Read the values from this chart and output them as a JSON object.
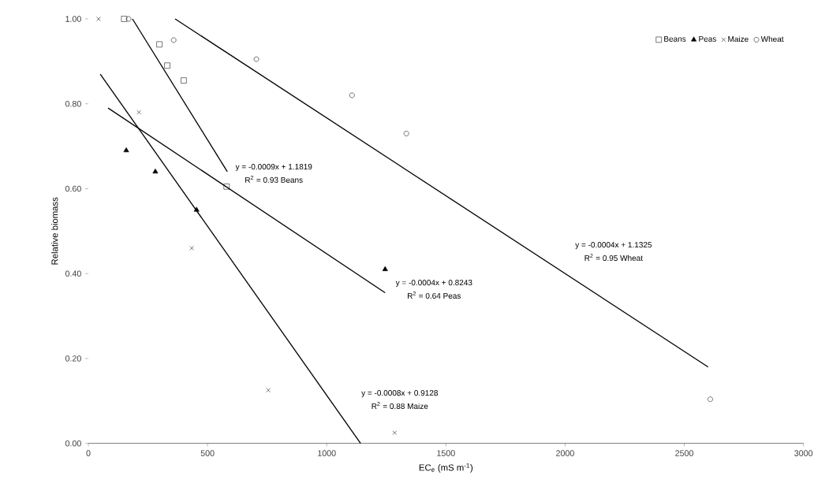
{
  "chart_data": {
    "type": "scatter",
    "xlabel": "EC$_{e}$ (mS m$^{-1}$)",
    "ylabel": "Relative biomass",
    "xlim": [
      0,
      3000
    ],
    "ylim": [
      0,
      1.0
    ],
    "xticks": [
      0,
      500,
      1000,
      1500,
      2000,
      2500,
      3000
    ],
    "yticks": [
      {
        "value": 0,
        "label": "0.00"
      },
      {
        "value": 0.2,
        "label": "0.20"
      },
      {
        "value": 0.4,
        "label": "0.40"
      },
      {
        "value": 0.6,
        "label": "0.60"
      },
      {
        "value": 0.8,
        "label": "0.80"
      },
      {
        "value": 1.0,
        "label": "1.00"
      }
    ],
    "grid": false,
    "legend": "top right",
    "series": [
      {
        "name": "Beans",
        "color": "#000000",
        "marker": "square",
        "x": [
          150,
          298,
          331,
          400,
          580
        ],
        "values": [
          1.0,
          0.94,
          0.89,
          0.855,
          0.605
        ]
      },
      {
        "name": "Peas",
        "color": "#000000",
        "marker": "triangle",
        "x": [
          159,
          281,
          454,
          1245
        ],
        "values": [
          0.69,
          0.64,
          0.55,
          0.41
        ]
      },
      {
        "name": "Maize",
        "color": "#000000",
        "marker": "cross",
        "x": [
          43,
          212,
          434,
          755,
          1285
        ],
        "values": [
          1.0,
          0.78,
          0.46,
          0.125,
          0.025
        ]
      },
      {
        "name": "Wheat",
        "color": "#000000",
        "marker": "circle",
        "x": [
          169,
          358,
          705,
          1106,
          1334,
          2609
        ],
        "values": [
          1.0,
          0.95,
          0.905,
          0.82,
          0.73,
          0.104
        ]
      },
      {
        "type": "line",
        "color": "#000000",
        "marker": "none",
        "x": [
          185,
          583
        ],
        "values": [
          1.0,
          0.64
        ]
      },
      {
        "type": "line",
        "color": "#000000",
        "marker": "none",
        "x": [
          83,
          1245
        ],
        "values": [
          0.79,
          0.355
        ]
      },
      {
        "type": "line",
        "color": "#000000",
        "marker": "none",
        "x": [
          50,
          1142
        ],
        "values": [
          0.87,
          0.0
        ]
      },
      {
        "type": "line",
        "color": "#000000",
        "marker": "none",
        "x": [
          364,
          2600
        ],
        "values": [
          1.0,
          0.18
        ]
      }
    ],
    "annotations": [
      "y = -0.0009x + 1.1819",
      "R$^{2}$ = 0.93  Beans",
      "y = -0.0004x + 0.8243",
      "R$^{2}$ = 0.64  Peas",
      "y = -0.0008x + 0.9128",
      "R$^{2}$ = 0.88  Maize",
      "y = -0.0004x + 1.1325",
      "R$^{2}$ = 0.95  Wheat"
    ]
  }
}
